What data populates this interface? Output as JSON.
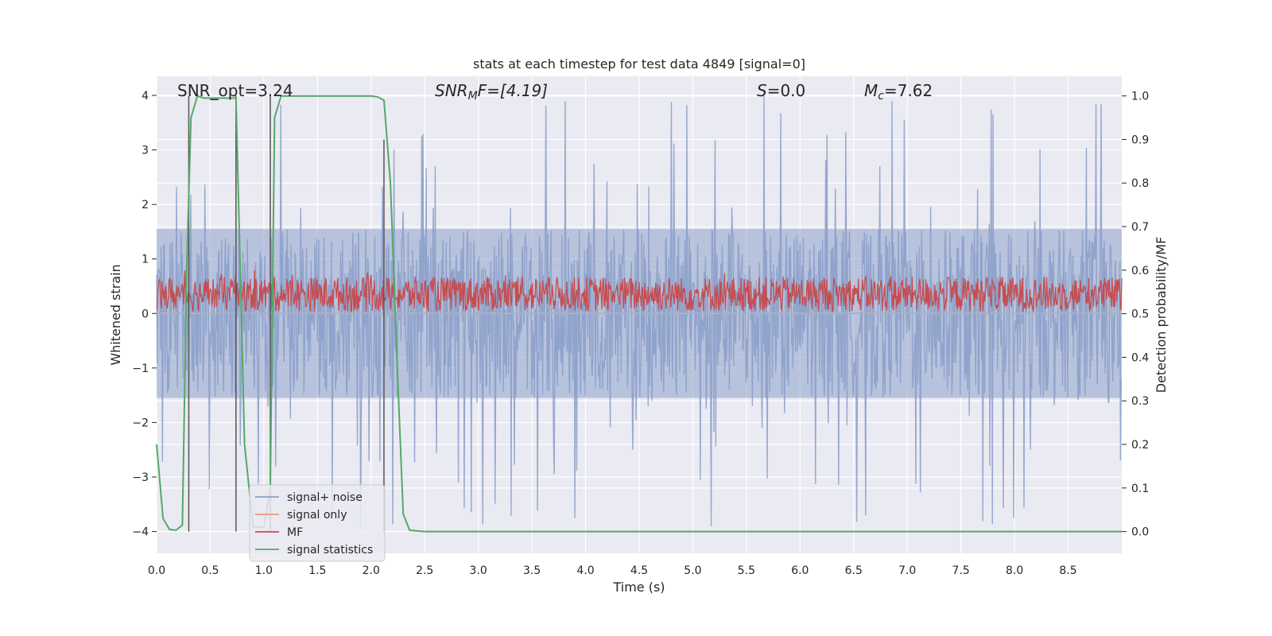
{
  "chart_data": {
    "type": "line",
    "title": "stats at each timestep for test data 4849 [signal=0]",
    "xlabel": "Time (s)",
    "ylabel_left": "Whitened strain",
    "ylabel_right": "Detection probability/MF",
    "xlim": [
      0.0,
      9.0
    ],
    "ylim_left": [
      -4.4,
      4.35
    ],
    "ylim_right": [
      -0.05,
      1.045
    ],
    "x_ticks": [
      "0.0",
      "0.5",
      "1.0",
      "1.5",
      "2.0",
      "2.5",
      "3.0",
      "3.5",
      "4.0",
      "4.5",
      "5.0",
      "5.5",
      "6.0",
      "6.5",
      "7.0",
      "7.5",
      "8.0",
      "8.5"
    ],
    "x_tick_values": [
      0.0,
      0.5,
      1.0,
      1.5,
      2.0,
      2.5,
      3.0,
      3.5,
      4.0,
      4.5,
      5.0,
      5.5,
      6.0,
      6.5,
      7.0,
      7.5,
      8.0,
      8.5
    ],
    "y_left_ticks": [
      "4",
      "3",
      "2",
      "1",
      "0",
      "−1",
      "−2",
      "−3",
      "−4"
    ],
    "y_left_tick_values": [
      4,
      3,
      2,
      1,
      0,
      -1,
      -2,
      -3,
      -4
    ],
    "y_right_ticks": [
      "1.0",
      "0.9",
      "0.8",
      "0.7",
      "0.6",
      "0.5",
      "0.4",
      "0.3",
      "0.2",
      "0.1",
      "0.0"
    ],
    "y_right_tick_values": [
      1.0,
      0.9,
      0.8,
      0.7,
      0.6,
      0.5,
      0.4,
      0.3,
      0.2,
      0.1,
      0.0
    ],
    "grid": true,
    "legend_position": "bottom-left",
    "annotations": [
      {
        "text": "SNR_opt=3.24",
        "x": 0.2,
        "y": 4.0
      },
      {
        "text": "SNR_MF=[4.19]",
        "x": 2.6,
        "y": 4.0
      },
      {
        "text": "S=0.0",
        "x": 5.6,
        "y": 4.0
      },
      {
        "text": "M_c=7.62",
        "x": 6.6,
        "y": 4.0
      }
    ],
    "annot_display": {
      "snr_opt": "SNR_opt=3.24",
      "snr_mf_sym": "SNR",
      "snr_mf_sub": "M",
      "snr_mf_rest": "F=[4.19]",
      "s_sym": "S",
      "s_rest": "=0.0",
      "mc_sym": "M",
      "mc_sub": "c",
      "mc_rest": "=7.62"
    },
    "series": [
      {
        "name": "signal+ noise",
        "color": "#8da0cb",
        "axis": "left",
        "style": "noise",
        "amplitude": 1.55,
        "peak_max": 4.0,
        "peak_min": -4.0
      },
      {
        "name": "signal only",
        "color": "#e9967a",
        "axis": "left",
        "style": "flat",
        "values": []
      },
      {
        "name": "MF",
        "color": "#c44e52",
        "axis": "right",
        "style": "noise",
        "center": 0.545,
        "amplitude": 0.04,
        "peak_max": 0.6
      },
      {
        "name": "signal statistics",
        "color": "#55a868",
        "axis": "right",
        "x": [
          0.0,
          0.06,
          0.12,
          0.18,
          0.24,
          0.28,
          0.32,
          0.38,
          0.44,
          0.5,
          0.56,
          0.62,
          0.68,
          0.74,
          0.78,
          0.82,
          0.9,
          1.0,
          1.06,
          1.1,
          1.16,
          1.2,
          1.5,
          1.8,
          2.0,
          2.06,
          2.12,
          2.18,
          2.24,
          2.3,
          2.36,
          2.5,
          3.0,
          4.0,
          5.0,
          6.0,
          7.0,
          8.0,
          9.0
        ],
        "values": [
          0.2,
          0.03,
          0.005,
          0.003,
          0.015,
          0.6,
          0.95,
          1.0,
          0.995,
          0.995,
          0.995,
          0.995,
          0.995,
          0.995,
          0.6,
          0.2,
          0.01,
          0.01,
          0.1,
          0.95,
          1.0,
          1.0,
          1.0,
          1.0,
          1.0,
          0.998,
          0.99,
          0.8,
          0.4,
          0.04,
          0.003,
          0.0,
          0.0,
          0.0,
          0.0,
          0.0,
          0.0,
          0.0,
          0.0
        ]
      }
    ],
    "vertical_markers": [
      {
        "x": 0.3,
        "y_top": 1.0
      },
      {
        "x": 0.74,
        "y_top": 1.0
      },
      {
        "x": 1.06,
        "y_top": 1.0
      },
      {
        "x": 2.12,
        "y_top": 0.9
      }
    ],
    "colors": {
      "axes_bg": "#eaeaf2",
      "grid": "#ffffff",
      "marker": "#555555",
      "text": "#262626"
    }
  }
}
